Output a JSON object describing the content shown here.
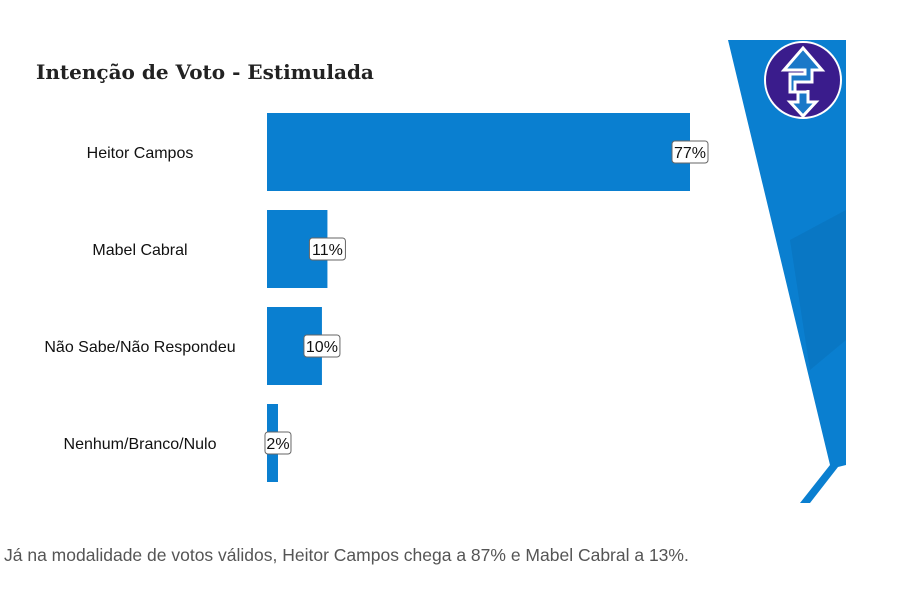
{
  "chart_data": {
    "type": "bar",
    "orientation": "horizontal",
    "title": "Intenção de Voto - Estimulada",
    "categories": [
      "Heitor Campos",
      "Mabel Cabral",
      "Não Sabe/Não Respondeu",
      "Nenhum/Branco/Nulo"
    ],
    "values": [
      77,
      11,
      10,
      2
    ],
    "value_labels": [
      "77%",
      "11%",
      "10%",
      "2%"
    ],
    "xlim": [
      0,
      100
    ],
    "grid": false,
    "bar_color": "#0a7fd0"
  },
  "colors": {
    "accent": "#0a7fd0",
    "logo": "#3a1c8c"
  },
  "caption": "Já na modalidade de votos válidos, Heitor Campos chega a 87% e Mabel Cabral a 13%."
}
